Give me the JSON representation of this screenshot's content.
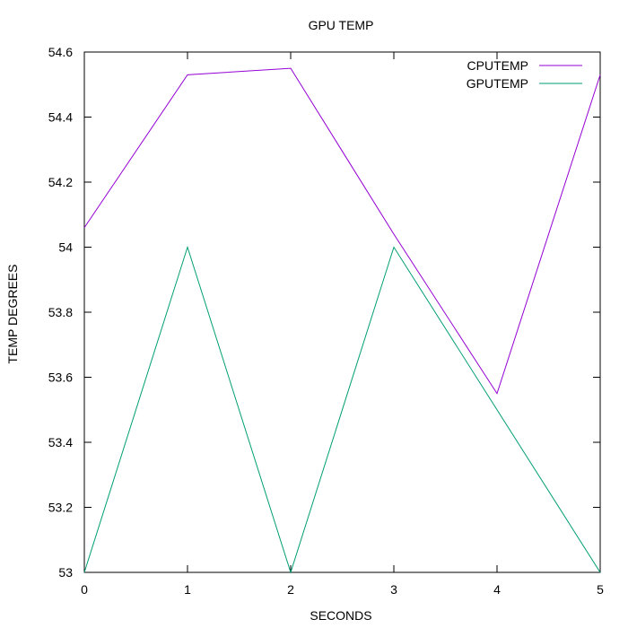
{
  "chart_data": {
    "type": "line",
    "title": "GPU TEMP",
    "xlabel": "SECONDS",
    "ylabel": "TEMP DEGREES",
    "x": [
      0,
      1,
      2,
      3,
      4,
      5
    ],
    "xlim": [
      0,
      5
    ],
    "ylim": [
      53,
      54.6
    ],
    "xticks": [
      "0",
      "1",
      "2",
      "3",
      "4",
      "5"
    ],
    "yticks": [
      "53",
      "53.2",
      "53.4",
      "53.6",
      "53.8",
      "54",
      "54.2",
      "54.4",
      "54.6"
    ],
    "grid": false,
    "legend_position": "top-right",
    "series": [
      {
        "name": "CPUTEMP",
        "color": "#9400d3",
        "values": [
          54.06,
          54.53,
          54.55,
          54.04,
          53.55,
          54.53
        ]
      },
      {
        "name": "GPUTEMP",
        "color": "#009e73",
        "values": [
          53,
          54,
          53,
          54,
          53.5,
          53
        ]
      }
    ]
  }
}
